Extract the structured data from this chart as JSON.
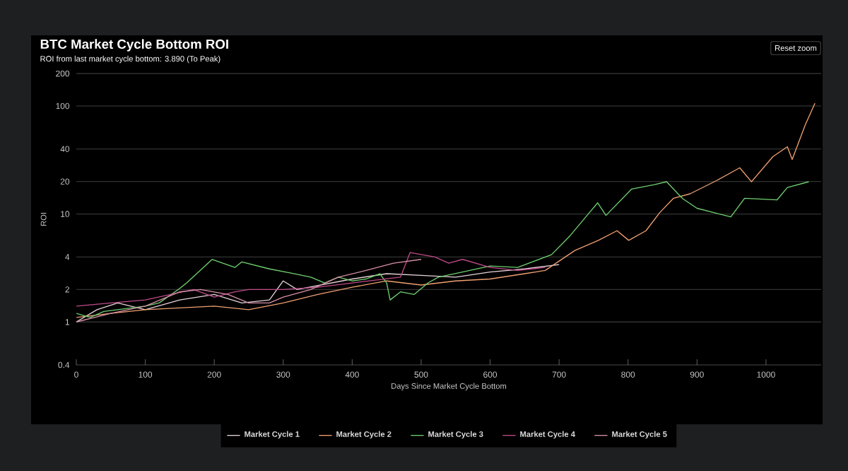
{
  "chart_data": {
    "type": "line",
    "title": "BTC Market Cycle Bottom ROI",
    "subtitle": "ROI from last market cycle bottom: 3.890 (To Peak)",
    "xlabel": "Days Since Market Cycle Bottom",
    "ylabel": "ROI",
    "annotations": [
      "Reset zoom"
    ],
    "log": "y",
    "grid": "y",
    "legend": "bottom",
    "marker": "none",
    "line_style": "solid",
    "xlim": [
      0,
      1080
    ],
    "xticks": [
      0,
      100,
      200,
      300,
      400,
      500,
      600,
      700,
      800,
      900,
      1000
    ],
    "ylim": [
      0.4,
      200
    ],
    "yticks": [
      0.4,
      1,
      2,
      4,
      10,
      20,
      40,
      100,
      200
    ],
    "series": [
      {
        "name": "Market Cycle 1",
        "color": "#e6d3d8",
        "x": [
          0,
          30,
          60,
          100,
          150,
          200,
          240,
          280,
          300,
          320,
          400,
          450,
          500,
          550,
          600,
          650,
          700
        ],
        "values": [
          1.0,
          1.3,
          1.5,
          1.3,
          1.6,
          1.8,
          1.5,
          1.6,
          2.4,
          2.0,
          2.5,
          2.8,
          2.7,
          2.6,
          2.9,
          3.1,
          3.4
        ]
      },
      {
        "name": "Market Cycle 2",
        "color": "#f0a070",
        "x": [
          0,
          50,
          100,
          150,
          200,
          250,
          300,
          350,
          400,
          450,
          500,
          550,
          600,
          650,
          680,
          723,
          757,
          784,
          801,
          826,
          846,
          866,
          890,
          929,
          962,
          979,
          1010,
          1031,
          1038,
          1057,
          1071
        ],
        "values": [
          1.1,
          1.2,
          1.3,
          1.35,
          1.4,
          1.3,
          1.5,
          1.8,
          2.1,
          2.4,
          2.2,
          2.4,
          2.5,
          2.8,
          3.0,
          4.6,
          5.7,
          7,
          5.7,
          7,
          10.3,
          14,
          15.4,
          20.5,
          26.8,
          19.9,
          34,
          42,
          32,
          67,
          106
        ]
      },
      {
        "name": "Market Cycle 3",
        "color": "#6fcf6f",
        "x": [
          0,
          20,
          40,
          60,
          80,
          100,
          120,
          148,
          160,
          197,
          230,
          240,
          280,
          310,
          340,
          360,
          380,
          400,
          420,
          440,
          450,
          455,
          470,
          490,
          510,
          525,
          560,
          600,
          640,
          689,
          715,
          744,
          756,
          768,
          805,
          838,
          856,
          879,
          900,
          949,
          969,
          1016,
          1031,
          1062
        ],
        "values": [
          1.2,
          1.1,
          1.25,
          1.3,
          1.35,
          1.4,
          1.5,
          2.0,
          2.3,
          3.8,
          3.2,
          3.6,
          3.1,
          2.85,
          2.6,
          2.3,
          2.6,
          2.4,
          2.5,
          2.8,
          2.3,
          1.6,
          1.9,
          1.8,
          2.3,
          2.6,
          2.9,
          3.3,
          3.2,
          4.2,
          6.2,
          10.3,
          12.7,
          9.7,
          17,
          18.7,
          19.9,
          13.9,
          11.3,
          9.4,
          14,
          13.5,
          17.6,
          19.9
        ]
      },
      {
        "name": "Market Cycle 4",
        "color": "#c04a8a",
        "x": [
          0,
          50,
          100,
          170,
          200,
          230,
          250,
          280,
          300,
          350,
          400,
          470,
          484,
          520,
          540,
          560,
          600,
          640,
          680
        ],
        "values": [
          1.4,
          1.5,
          1.6,
          2.0,
          1.7,
          1.9,
          2.0,
          2.0,
          2.0,
          2.1,
          2.3,
          2.6,
          4.4,
          4.0,
          3.5,
          3.8,
          3.2,
          3.0,
          3.2
        ]
      },
      {
        "name": "Market Cycle 5",
        "color": "#d890a8",
        "x": [
          0,
          50,
          100,
          150,
          180,
          220,
          250,
          280,
          300,
          340,
          380,
          420,
          460,
          500
        ],
        "values": [
          1.0,
          1.2,
          1.4,
          1.9,
          2.0,
          1.8,
          1.5,
          1.5,
          1.7,
          2.0,
          2.6,
          3.0,
          3.5,
          3.8
        ]
      }
    ]
  }
}
